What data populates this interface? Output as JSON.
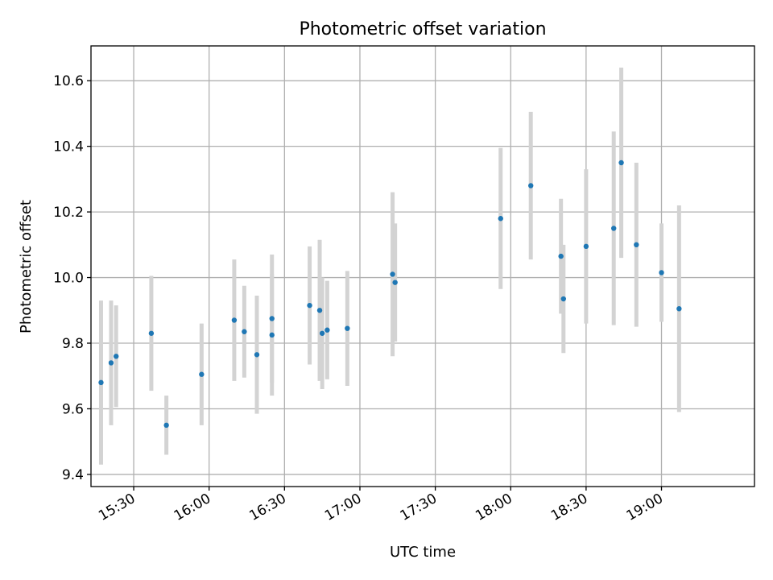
{
  "chart_data": {
    "type": "scatter",
    "title": "Photometric offset variation",
    "xlabel": "UTC time",
    "ylabel": "Photometric offset",
    "xlim": [
      "15:13",
      "19:37"
    ],
    "ylim": [
      9.363,
      10.706
    ],
    "grid": true,
    "x_ticks": [
      "15:30",
      "16:00",
      "16:30",
      "17:00",
      "17:30",
      "18:00",
      "18:30",
      "19:00"
    ],
    "y_ticks": [
      9.4,
      9.6,
      9.8,
      10.0,
      10.2,
      10.4,
      10.6
    ],
    "y_tick_labels": [
      "9.4",
      "9.6",
      "9.8",
      "10.0",
      "10.2",
      "10.4",
      "10.6"
    ],
    "marker_color": "#1f77b4",
    "errorbar_color": "#d3d3d3",
    "series": [
      {
        "points": [
          {
            "x": "15:17",
            "y": 9.68,
            "err": 0.25
          },
          {
            "x": "15:21",
            "y": 9.74,
            "err": 0.19
          },
          {
            "x": "15:23",
            "y": 9.76,
            "err": 0.155
          },
          {
            "x": "15:37",
            "y": 9.83,
            "err": 0.175
          },
          {
            "x": "15:43",
            "y": 9.55,
            "err": 0.09
          },
          {
            "x": "15:57",
            "y": 9.705,
            "err": 0.155
          },
          {
            "x": "16:10",
            "y": 9.87,
            "err": 0.185
          },
          {
            "x": "16:14",
            "y": 9.835,
            "err": 0.14
          },
          {
            "x": "16:19",
            "y": 9.765,
            "err": 0.18
          },
          {
            "x": "16:25",
            "y": 9.825,
            "err": 0.185
          },
          {
            "x": "16:25",
            "y": 9.875,
            "err": 0.195
          },
          {
            "x": "16:40",
            "y": 9.915,
            "err": 0.18
          },
          {
            "x": "16:44",
            "y": 9.9,
            "err": 0.215
          },
          {
            "x": "16:45",
            "y": 9.83,
            "err": 0.17
          },
          {
            "x": "16:47",
            "y": 9.84,
            "err": 0.15
          },
          {
            "x": "16:55",
            "y": 9.845,
            "err": 0.175
          },
          {
            "x": "17:13",
            "y": 10.01,
            "err": 0.25
          },
          {
            "x": "17:14",
            "y": 9.985,
            "err": 0.18
          },
          {
            "x": "17:56",
            "y": 10.18,
            "err": 0.215
          },
          {
            "x": "18:08",
            "y": 10.28,
            "err": 0.225
          },
          {
            "x": "18:20",
            "y": 10.065,
            "err": 0.175
          },
          {
            "x": "18:21",
            "y": 9.935,
            "err": 0.165
          },
          {
            "x": "18:30",
            "y": 10.095,
            "err": 0.235
          },
          {
            "x": "18:41",
            "y": 10.15,
            "err": 0.295
          },
          {
            "x": "18:44",
            "y": 10.35,
            "err": 0.29
          },
          {
            "x": "18:50",
            "y": 10.1,
            "err": 0.25
          },
          {
            "x": "19:00",
            "y": 10.015,
            "err": 0.15
          },
          {
            "x": "19:07",
            "y": 9.905,
            "err": 0.315
          }
        ]
      }
    ]
  }
}
